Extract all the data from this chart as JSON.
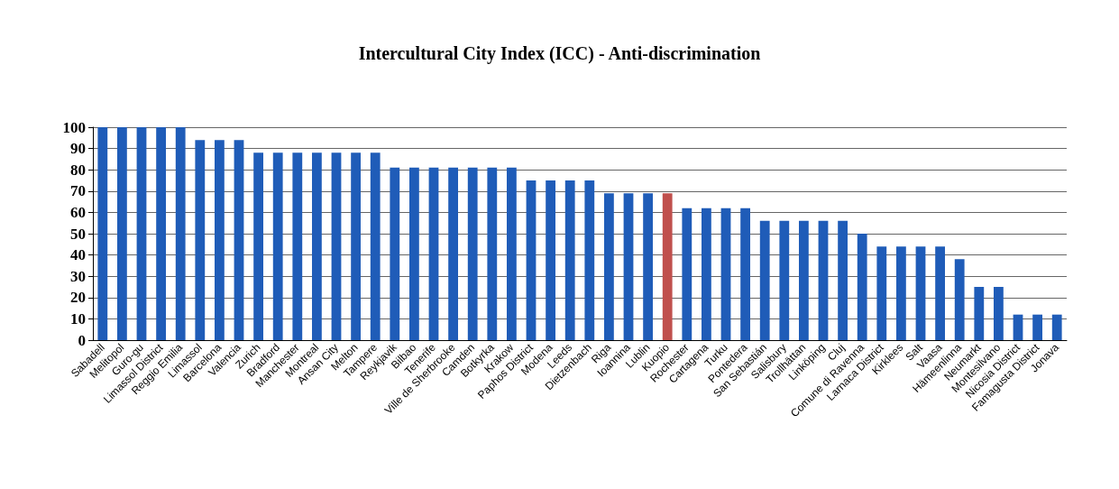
{
  "chart_data": {
    "type": "bar",
    "title": "Intercultural City Index (ICC) - Anti-discrimination",
    "categories": [
      "Sabadell",
      "Melitopol",
      "Guro-gu",
      "Limassol District",
      "Reggio Emilia",
      "Limassol",
      "Barcelona",
      "Valencia",
      "Zurich",
      "Bradford",
      "Manchester",
      "Montreal",
      "Ansan City",
      "Melton",
      "Tampere",
      "Reykjavik",
      "Bilbao",
      "Tenerife",
      "Ville de Sherbrooke",
      "Camden",
      "Botkyrka",
      "Krakow",
      "Paphos District",
      "Modena",
      "Leeds",
      "Dietzenbach",
      "Riga",
      "Ioannina",
      "Lublin",
      "Kuopio",
      "Rochester",
      "Cartagena",
      "Turku",
      "Pontedera",
      "San Sebastián",
      "Salisbury",
      "Trollhättan",
      "Linköping",
      "Cluj",
      "Comune di Ravenna",
      "Larnaca District",
      "Kirklees",
      "Salt",
      "Vaasa",
      "Hämeenlinna",
      "Neumarkt",
      "Montesilvano",
      "Nicosia District",
      "Famagusta District",
      "Jonava"
    ],
    "values": [
      100,
      100,
      100,
      100,
      100,
      94,
      94,
      94,
      88,
      88,
      88,
      88,
      88,
      88,
      88,
      81,
      81,
      81,
      81,
      81,
      81,
      81,
      75,
      75,
      75,
      75,
      69,
      69,
      69,
      69,
      62,
      62,
      62,
      62,
      56,
      56,
      56,
      56,
      56,
      50,
      44,
      44,
      44,
      44,
      38,
      25,
      25,
      12,
      12,
      12
    ],
    "colors": [
      "#1f5cb8",
      "#1f5cb8",
      "#1f5cb8",
      "#1f5cb8",
      "#1f5cb8",
      "#1f5cb8",
      "#1f5cb8",
      "#1f5cb8",
      "#1f5cb8",
      "#1f5cb8",
      "#1f5cb8",
      "#1f5cb8",
      "#1f5cb8",
      "#1f5cb8",
      "#1f5cb8",
      "#1f5cb8",
      "#1f5cb8",
      "#1f5cb8",
      "#1f5cb8",
      "#1f5cb8",
      "#1f5cb8",
      "#1f5cb8",
      "#1f5cb8",
      "#1f5cb8",
      "#1f5cb8",
      "#1f5cb8",
      "#1f5cb8",
      "#1f5cb8",
      "#1f5cb8",
      "#c0504d",
      "#1f5cb8",
      "#1f5cb8",
      "#1f5cb8",
      "#1f5cb8",
      "#1f5cb8",
      "#1f5cb8",
      "#1f5cb8",
      "#1f5cb8",
      "#1f5cb8",
      "#1f5cb8",
      "#1f5cb8",
      "#1f5cb8",
      "#1f5cb8",
      "#1f5cb8",
      "#1f5cb8",
      "#1f5cb8",
      "#1f5cb8",
      "#1f5cb8",
      "#1f5cb8",
      "#1f5cb8"
    ],
    "ylim": [
      0,
      100
    ],
    "yticks": [
      0,
      10,
      20,
      30,
      40,
      50,
      60,
      70,
      80,
      90,
      100
    ],
    "grid": "y"
  }
}
